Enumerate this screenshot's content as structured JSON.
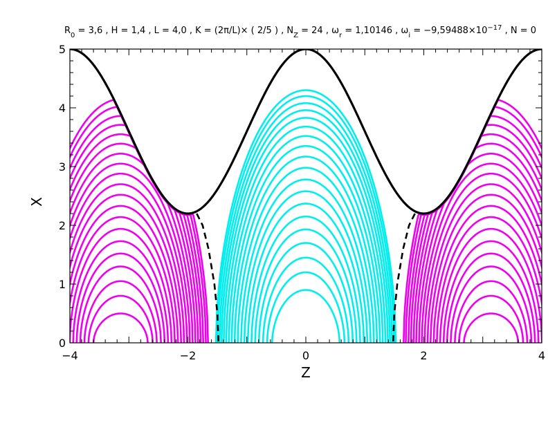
{
  "chart_data": {
    "type": "line",
    "title": {
      "segments": [
        {
          "t": "R"
        },
        {
          "t": "0",
          "sub": true
        },
        {
          "t": " = 3,6 ,  H = 1,4 ,  L = 4,0 ,  K = (2π/L)× ( 2/5 ) , N"
        },
        {
          "t": "Z",
          "sub": true
        },
        {
          "t": " = 24 ,  ω"
        },
        {
          "t": "r",
          "sub": true
        },
        {
          "t": " = 1,10146 ,  ω"
        },
        {
          "t": "i",
          "sub": true
        },
        {
          "t": " = −9,59488×10"
        },
        {
          "t": "−17",
          "sup": true
        },
        {
          "t": " ,  N = 0"
        }
      ]
    },
    "xlabel": "Z",
    "ylabel": "X",
    "xlim": [
      -4,
      4
    ],
    "ylim": [
      0,
      5
    ],
    "xticks": [
      -4,
      -2,
      0,
      2,
      4
    ],
    "yticks": [
      0,
      1,
      2,
      3,
      4,
      5
    ],
    "xtick_labels": [
      "−4",
      "−2",
      "0",
      "2",
      "4"
    ],
    "ytick_labels": [
      "0",
      "1",
      "2",
      "3",
      "4",
      "5"
    ],
    "grid": false,
    "boundary": {
      "name": "boundary",
      "color": "#000000",
      "style": "solid",
      "formula": "X = 3.6 + 1.4·cos(πZ/2)"
    },
    "separatrix": {
      "color": "#000000",
      "style": "dashed",
      "points": [
        [
          1.85,
          2.2
        ],
        [
          1.75,
          2.0
        ],
        [
          1.65,
          1.6
        ],
        [
          1.55,
          1.0
        ],
        [
          1.5,
          0.5
        ],
        [
          1.48,
          0.0
        ]
      ]
    },
    "contour_groups": [
      {
        "name": "central",
        "color": "#00eeee",
        "center": 0,
        "apex_values": [
          0.9,
          1.2,
          1.45,
          1.7,
          1.93,
          2.15,
          2.37,
          2.58,
          2.78,
          2.98,
          3.17,
          3.35,
          3.52,
          3.68,
          3.83,
          3.96,
          4.08,
          4.2,
          4.3
        ]
      },
      {
        "name": "left",
        "color": "#ee00ee",
        "center": -3.14,
        "apex_values": [
          0.5,
          0.8,
          1.05,
          1.3,
          1.52,
          1.73,
          1.94,
          2.14,
          2.33,
          2.52,
          2.7,
          2.88,
          3.05,
          3.22,
          3.39,
          3.55,
          3.71,
          3.86,
          4.02,
          4.15
        ]
      },
      {
        "name": "right",
        "color": "#ee00ee",
        "center": 3.14,
        "apex_values": [
          0.5,
          0.8,
          1.05,
          1.3,
          1.52,
          1.73,
          1.94,
          2.14,
          2.33,
          2.52,
          2.7,
          2.88,
          3.05,
          3.22,
          3.39,
          3.55,
          3.71,
          3.86,
          4.02,
          4.15
        ]
      }
    ]
  }
}
